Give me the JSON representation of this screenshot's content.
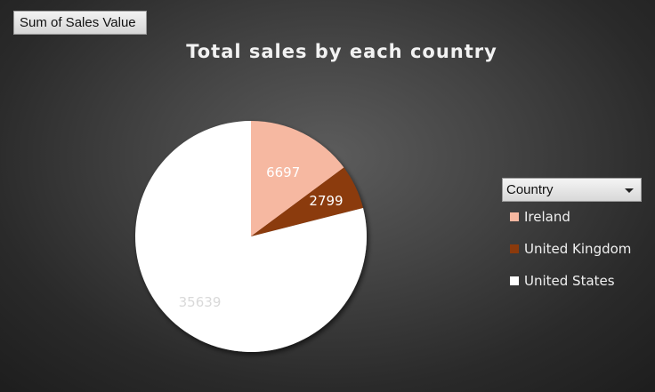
{
  "field_button": {
    "label": "Sum of Sales Value"
  },
  "legend": {
    "dropdown_label": "Country"
  },
  "chart_data": {
    "type": "pie",
    "title": "Total sales by each country",
    "slices": [
      {
        "label": "Ireland",
        "value": 6697,
        "color": "#f6b8a1"
      },
      {
        "label": "United Kingdom",
        "value": 2799,
        "color": "#8b3a0c"
      },
      {
        "label": "United States",
        "value": 35639,
        "color": "#ffffff"
      }
    ],
    "data_label_colors": [
      "#ffffff",
      "#ffffff",
      "#d9d9d9"
    ],
    "legend_position": "right"
  }
}
